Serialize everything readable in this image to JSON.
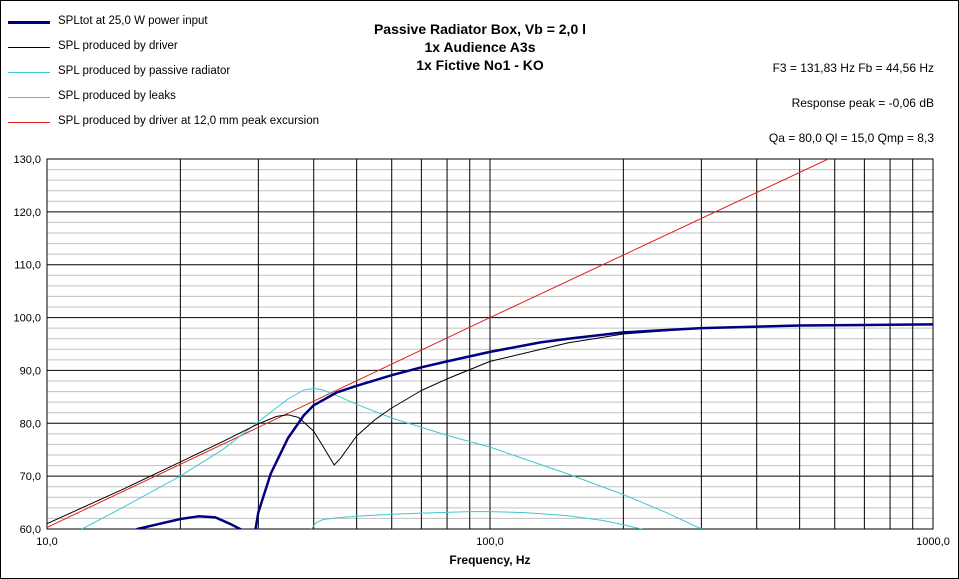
{
  "chart_data": {
    "type": "line",
    "title_lines": [
      "Passive Radiator Box, Vb = 2,0 l",
      "1x Audience A3s",
      "1x Fictive No1 - KO"
    ],
    "stats": [
      "F3 = 131,83 Hz  Fb = 44,56 Hz",
      "Response peak = -0,06 dB",
      "Qa = 80,0  Ql = 15,0  Qmp = 8,3"
    ],
    "xlabel": "Frequency, Hz",
    "ylabel": "",
    "x_scale": "log",
    "xlim": [
      10,
      1000
    ],
    "ylim": [
      60,
      130
    ],
    "x_ticks": [
      {
        "value": 10,
        "label": "10,0"
      },
      {
        "value": 100,
        "label": "100,0"
      },
      {
        "value": 1000,
        "label": "1000,0"
      }
    ],
    "y_ticks": [
      {
        "value": 60,
        "label": "60,0"
      },
      {
        "value": 70,
        "label": "70,0"
      },
      {
        "value": 80,
        "label": "80,0"
      },
      {
        "value": 90,
        "label": "90,0"
      },
      {
        "value": 100,
        "label": "100,0"
      },
      {
        "value": 110,
        "label": "110,0"
      },
      {
        "value": 120,
        "label": "120,0"
      },
      {
        "value": 130,
        "label": "130,0"
      }
    ],
    "grid": true,
    "legend_position": "top-left",
    "series": [
      {
        "name": "SPLtot at 25,0 W power input",
        "color": "#000080",
        "x": [
          16,
          18,
          20,
          22,
          24,
          26,
          28,
          29.5,
          30,
          32,
          35,
          38,
          40,
          45,
          50,
          60,
          70,
          80,
          100,
          130,
          150,
          200,
          300,
          500,
          700,
          1000
        ],
        "y": [
          60,
          61,
          61.9,
          62.4,
          62.2,
          60.9,
          59.5,
          59.5,
          63.2,
          70.5,
          77.2,
          81.5,
          83.4,
          85.8,
          87.1,
          89.1,
          90.6,
          91.7,
          93.5,
          95.3,
          96.0,
          97.2,
          98.0,
          98.5,
          98.6,
          98.7
        ]
      },
      {
        "name": "SPL produced by driver",
        "color": "#000000",
        "x": [
          10,
          15,
          20,
          25,
          30,
          33,
          35,
          37,
          40,
          42,
          44.5,
          46,
          50,
          55,
          60,
          70,
          80,
          100,
          150,
          200,
          300,
          500,
          1000
        ],
        "y": [
          61,
          67.7,
          72.7,
          76.6,
          79.9,
          81.3,
          81.6,
          81.1,
          78.5,
          75.6,
          72.1,
          73.4,
          77.6,
          80.7,
          82.9,
          86.2,
          88.4,
          91.7,
          95.2,
          96.9,
          98.0,
          98.5,
          98.7
        ]
      },
      {
        "name": "SPL produced by passive radiator",
        "color": "#40C8D0",
        "x": [
          12,
          15,
          20,
          25,
          30,
          35,
          38,
          40,
          42,
          45,
          50,
          60,
          80,
          100,
          150,
          200,
          250,
          300
        ],
        "y": [
          60,
          64.3,
          70.0,
          75.1,
          80.3,
          84.6,
          86.3,
          86.6,
          86.3,
          85.3,
          83.6,
          81.0,
          77.7,
          75.5,
          70.4,
          66.5,
          63.1,
          60
        ]
      },
      {
        "name": "SPL produced by leaks",
        "color": "#40C8D0",
        "x": [
          39.5,
          40.5,
          42,
          45,
          50,
          60,
          70,
          90,
          100,
          120,
          150,
          180,
          200,
          220
        ],
        "y": [
          60,
          61.2,
          61.8,
          62.1,
          62.4,
          62.8,
          63.0,
          63.3,
          63.3,
          63.1,
          62.5,
          61.6,
          60.8,
          60
        ]
      },
      {
        "name": "SPL produced by driver at 12,0 mm peak excursion",
        "color": "#E02020",
        "x": [
          10,
          100,
          580
        ],
        "y": [
          60.3,
          100.0,
          130.0
        ]
      }
    ]
  }
}
